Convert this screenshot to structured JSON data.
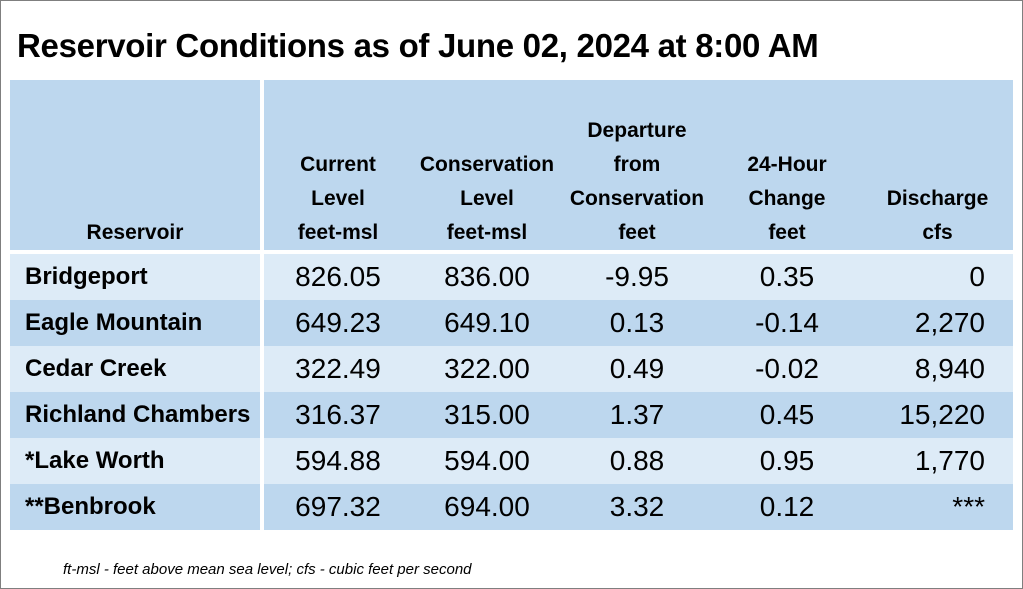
{
  "title": "Reservoir Conditions as of June 02, 2024 at 8:00 AM",
  "headers": {
    "reservoir": "Reservoir",
    "current": [
      "",
      "Current",
      "Level",
      "feet-msl"
    ],
    "conservation": [
      "",
      "Conservation",
      "Level",
      "feet-msl"
    ],
    "departure": [
      "Departure",
      "from",
      "Conservation",
      "feet"
    ],
    "change": [
      "",
      "24-Hour",
      "Change",
      "feet"
    ],
    "discharge": [
      "",
      "",
      "Discharge",
      "cfs"
    ]
  },
  "rows": [
    {
      "name": "Bridgeport",
      "current": "826.05",
      "conservation": "836.00",
      "departure": "-9.95",
      "change": "0.35",
      "discharge": "0"
    },
    {
      "name": "Eagle Mountain",
      "current": "649.23",
      "conservation": "649.10",
      "departure": "0.13",
      "change": "-0.14",
      "discharge": "2,270"
    },
    {
      "name": "Cedar Creek",
      "current": "322.49",
      "conservation": "322.00",
      "departure": "0.49",
      "change": "-0.02",
      "discharge": "8,940"
    },
    {
      "name": "Richland Chambers",
      "current": "316.37",
      "conservation": "315.00",
      "departure": "1.37",
      "change": "0.45",
      "discharge": "15,220"
    },
    {
      "name": "*Lake Worth",
      "current": "594.88",
      "conservation": "594.00",
      "departure": "0.88",
      "change": "0.95",
      "discharge": "1,770"
    },
    {
      "name": "**Benbrook",
      "current": "697.32",
      "conservation": "694.00",
      "departure": "3.32",
      "change": "0.12",
      "discharge": "***"
    }
  ],
  "footnote": "ft-msl - feet above mean sea level; cfs - cubic feet per second",
  "colors": {
    "header_bg": "#bdd7ee",
    "row_light": "#ddebf7",
    "row_dark": "#bdd7ee"
  }
}
